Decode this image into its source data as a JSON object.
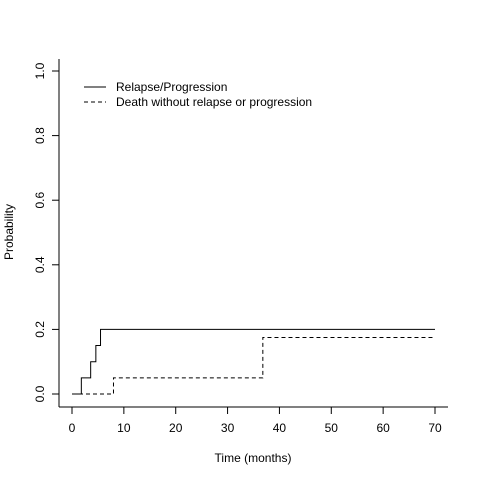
{
  "chart_data": {
    "type": "line",
    "title": "",
    "xlabel": "Time (months)",
    "ylabel": "Probability",
    "xlim": [
      0,
      70
    ],
    "ylim": [
      0,
      1
    ],
    "xticks": [
      "0",
      "10",
      "20",
      "30",
      "40",
      "50",
      "60",
      "70"
    ],
    "yticks": [
      "0.0",
      "0.2",
      "0.4",
      "0.6",
      "0.8",
      "1.0"
    ],
    "grid": false,
    "legend_position": "top-left",
    "series": [
      {
        "name": "Relapse/Progression",
        "line_style": "solid",
        "step": true,
        "x": [
          0,
          1.8,
          3.6,
          4.6,
          5.5,
          70
        ],
        "y": [
          0,
          0.05,
          0.1,
          0.15,
          0.2,
          0.2
        ]
      },
      {
        "name": "Death without relapse or progression",
        "line_style": "dashed",
        "step": true,
        "x": [
          0,
          8.0,
          36.8,
          70
        ],
        "y": [
          0,
          0.05,
          0.175,
          0.175
        ]
      }
    ]
  }
}
